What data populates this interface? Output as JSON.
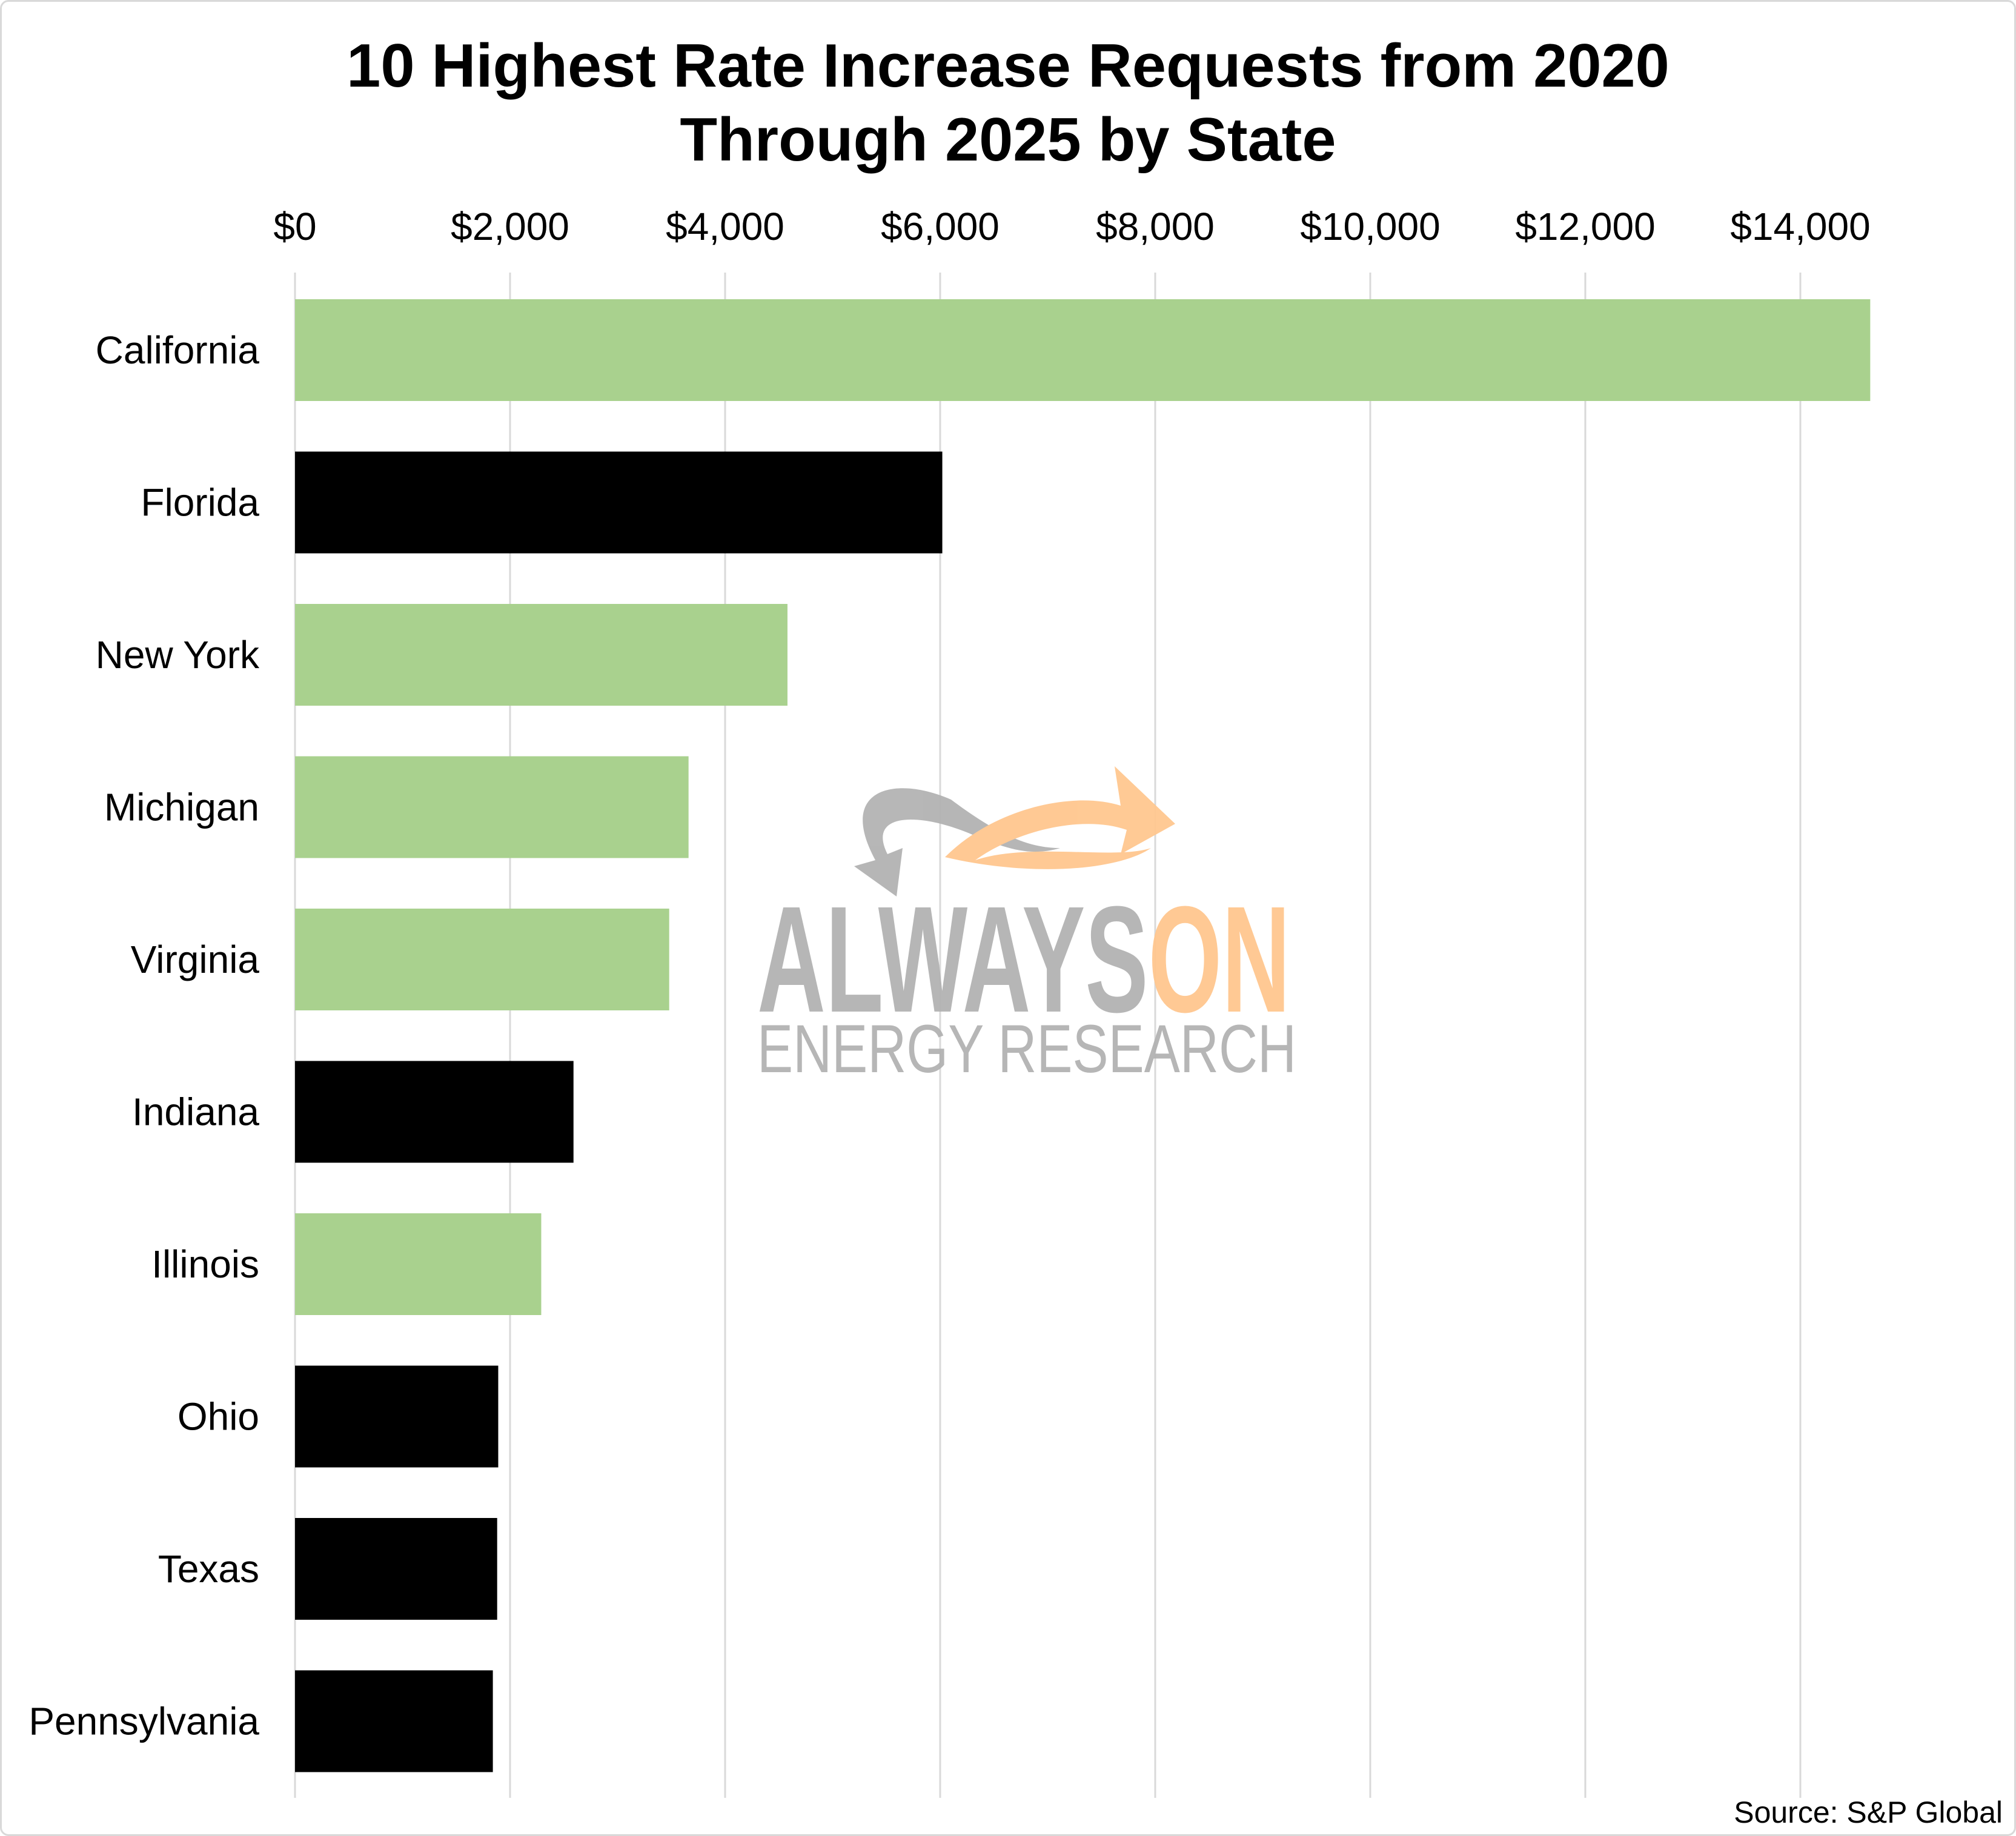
{
  "title_line1": "10 Highest Rate Increase Requests from 2020",
  "title_line2": "Through 2025 by State",
  "source": "Source: S&P Global",
  "watermark": {
    "main": "ALWAYS",
    "accent": "ON",
    "sub": "ENERGY RESEARCH"
  },
  "colors": {
    "green": "#a9d18e",
    "black": "#000000",
    "grid": "#d9d9d9",
    "watermark_gray": "#b3b3b3",
    "watermark_orange": "#ffc78f"
  },
  "chart_data": {
    "type": "bar",
    "orientation": "horizontal",
    "title": "10 Highest Rate Increase Requests from 2020 Through 2025 by State",
    "xlabel": "",
    "ylabel": "",
    "xlim": [
      0,
      14000
    ],
    "x_ticks": [
      0,
      2000,
      4000,
      6000,
      8000,
      10000,
      12000,
      14000
    ],
    "x_tick_labels": [
      "$0",
      "$2,000",
      "$4,000",
      "$6,000",
      "$8,000",
      "$10,000",
      "$12,000",
      "$14,000"
    ],
    "x_axis_position": "top",
    "grid": true,
    "legend": "none",
    "categories": [
      "California",
      "Florida",
      "New York",
      "Michigan",
      "Virginia",
      "Indiana",
      "Illinois",
      "Ohio",
      "Texas",
      "Pennsylvania"
    ],
    "values": [
      14650,
      6020,
      4580,
      3660,
      3480,
      2590,
      2290,
      1890,
      1880,
      1840
    ],
    "bar_colors": [
      "green",
      "black",
      "green",
      "green",
      "green",
      "black",
      "green",
      "black",
      "black",
      "black"
    ]
  }
}
